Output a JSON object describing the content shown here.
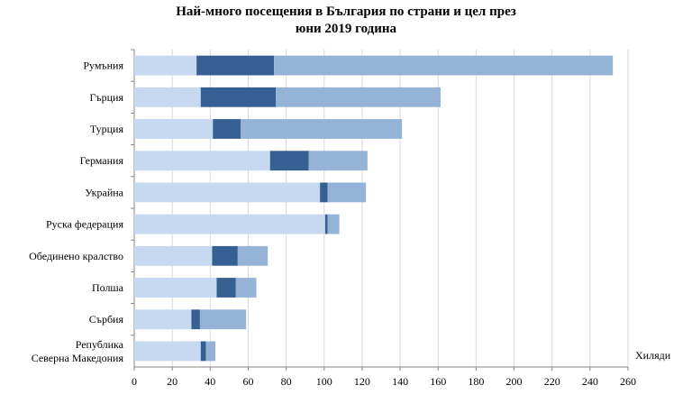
{
  "chart_data": {
    "type": "bar",
    "orientation": "horizontal",
    "stacked": true,
    "title_line1": "Най-много посещения в България по страни и цел през",
    "title_line2": "юни 2019 година",
    "xlabel": "Хиляди",
    "xlim": [
      0,
      260
    ],
    "xticks": [
      "0",
      "20",
      "40",
      "60",
      "80",
      "100",
      "120",
      "140",
      "160",
      "180",
      "200",
      "220",
      "240",
      "260"
    ],
    "grid": true,
    "categories": [
      "Румъния",
      "Гърция",
      "Турция",
      "Германия",
      "Украйна",
      "Руска федерация",
      "Обединено кралство",
      "Полша",
      "Сърбия",
      "Република Северна Македония"
    ],
    "category_lines": [
      [
        "Румъния"
      ],
      [
        "Гърция"
      ],
      [
        "Турция"
      ],
      [
        "Германия"
      ],
      [
        "Украйна"
      ],
      [
        "Руска федерация"
      ],
      [
        "Обединено кралство"
      ],
      [
        "Полша"
      ],
      [
        "Сърбия"
      ],
      [
        "Република",
        "Северна Македония"
      ]
    ],
    "series": [
      {
        "color": "#c6d9f1",
        "values": [
          32.8,
          35.0,
          41.4,
          71.5,
          97.8,
          100.5,
          41.0,
          43.4,
          30.1,
          35.0
        ]
      },
      {
        "color": "#366092",
        "values": [
          40.8,
          39.6,
          14.6,
          20.4,
          4.0,
          1.3,
          13.5,
          10.1,
          4.5,
          2.7
        ]
      },
      {
        "color": "#95b3d7",
        "values": [
          178.4,
          86.7,
          85.0,
          30.9,
          20.2,
          6.2,
          15.8,
          10.8,
          24.3,
          5.0
        ]
      }
    ]
  }
}
